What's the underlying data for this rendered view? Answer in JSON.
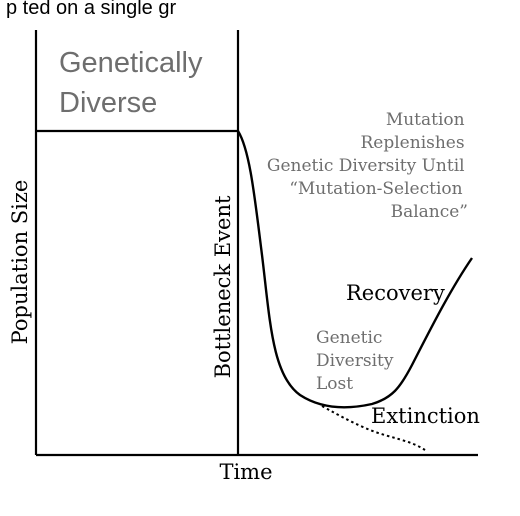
{
  "header_text": "p ted on a single gr",
  "labels": {
    "genetically_diverse": [
      "Genetically",
      "Diverse"
    ],
    "mutation_note": [
      "Mutation",
      "Replenishes",
      "Genetic Diversity Until",
      "“Mutation-Selection",
      "Balance”"
    ],
    "y_axis": "Population Size",
    "x_axis": "Time",
    "bottleneck": "Bottleneck Event",
    "recovery": "Recovery",
    "genetic_diversity_lost": [
      "Genetic",
      "Diversity",
      "Lost"
    ],
    "extinction": "Extinction"
  },
  "colors": {
    "ink": "#000000",
    "muted_text": "#6e6e6e",
    "background": "#ffffff"
  }
}
